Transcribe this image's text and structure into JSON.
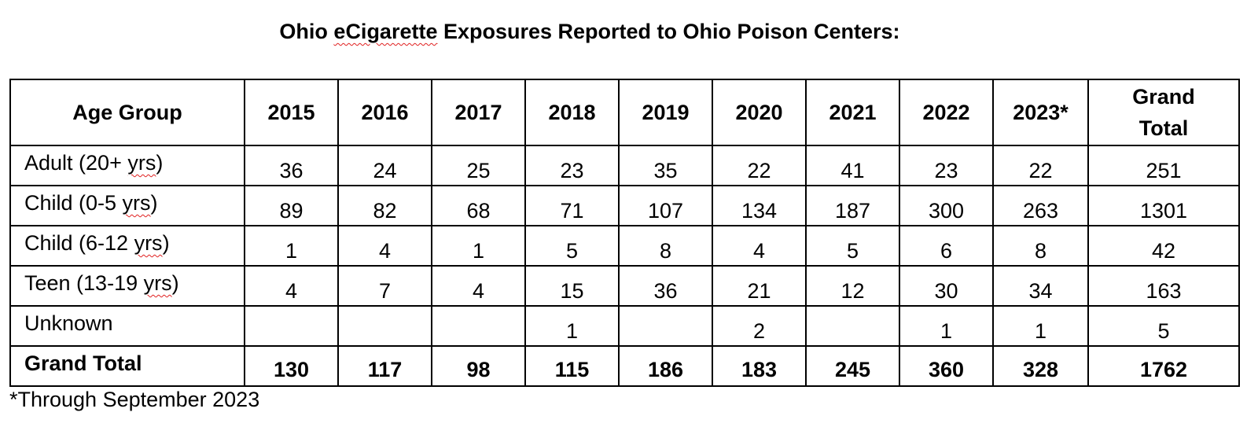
{
  "title": {
    "prefix": "Ohio ",
    "squiggle_word": "eCigarette",
    "suffix": " Exposures Reported to Ohio Poison Centers:"
  },
  "table": {
    "headers": [
      "Age Group",
      "2015",
      "2016",
      "2017",
      "2018",
      "2019",
      "2020",
      "2021",
      "2022",
      "2023*",
      "Grand Total"
    ],
    "rows": [
      {
        "label_parts": [
          "Adult (20+ ",
          "yrs",
          ")"
        ],
        "values": [
          "36",
          "24",
          "25",
          "23",
          "35",
          "22",
          "41",
          "23",
          "22",
          "251"
        ]
      },
      {
        "label_parts": [
          "Child (0-5 ",
          "yrs",
          ")"
        ],
        "values": [
          "89",
          "82",
          "68",
          "71",
          "107",
          "134",
          "187",
          "300",
          "263",
          "1301"
        ]
      },
      {
        "label_parts": [
          "Child (6-12 ",
          "yrs",
          ")"
        ],
        "values": [
          "1",
          "4",
          "1",
          "5",
          "8",
          "4",
          "5",
          "6",
          "8",
          "42"
        ]
      },
      {
        "label_parts": [
          "Teen (13-19 ",
          "yrs",
          ")"
        ],
        "values": [
          "4",
          "7",
          "4",
          "15",
          "36",
          "21",
          "12",
          "30",
          "34",
          "163"
        ]
      },
      {
        "label_parts": [
          "Unknown",
          "",
          ""
        ],
        "values": [
          "",
          "",
          "",
          "1",
          "",
          "2",
          "",
          "1",
          "1",
          "5"
        ]
      }
    ],
    "total": {
      "label": "Grand Total",
      "values": [
        "130",
        "117",
        "98",
        "115",
        "186",
        "183",
        "245",
        "360",
        "328",
        "1762"
      ]
    }
  },
  "footnote": "*Through September 2023",
  "colors": {
    "text": "#000000",
    "border": "#000000",
    "spellcheck_squiggle": "#e02020",
    "background": "#ffffff"
  }
}
